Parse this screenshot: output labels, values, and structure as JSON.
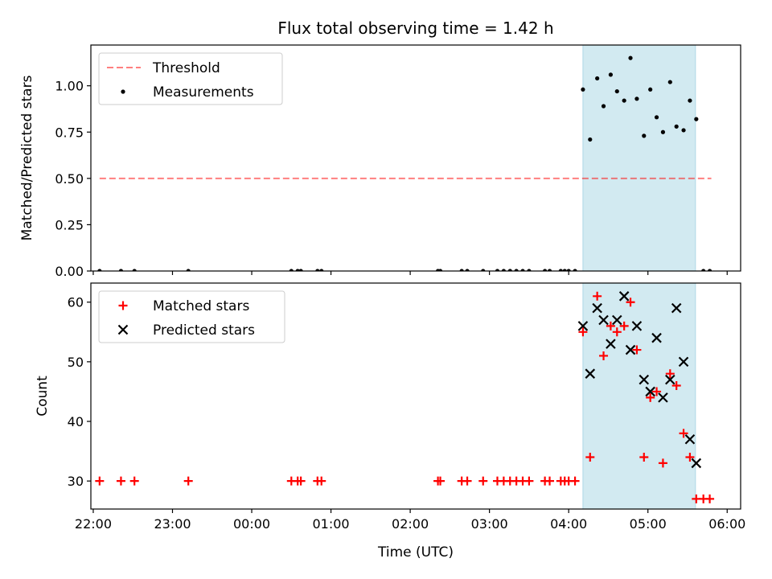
{
  "title": "Flux total observing time = 1.42 h",
  "xlabel": "Time (UTC)",
  "x_tick_labels": [
    "22:00",
    "23:00",
    "00:00",
    "01:00",
    "02:00",
    "03:00",
    "04:00",
    "05:00",
    "06:00"
  ],
  "x_tick_hours": [
    22,
    23,
    24,
    25,
    26,
    27,
    28,
    29,
    30
  ],
  "x_range_hours": [
    21.97,
    30.17
  ],
  "shaded_span_hours": [
    28.18,
    29.6
  ],
  "shade_color": "#add8e6",
  "chart_data": [
    {
      "type": "scatter",
      "ylabel": "Matched/Predicted stars",
      "ylim": [
        0,
        1.22
      ],
      "y_ticks": [
        0,
        0.25,
        0.5,
        0.75,
        1.0
      ],
      "y_tick_labels": [
        "0.00",
        "0.25",
        "0.50",
        "0.75",
        "1.00"
      ],
      "legend_position": "upper-left",
      "threshold": {
        "name": "Threshold",
        "y": 0.5,
        "x_range": [
          22.08,
          29.8
        ],
        "color": "#ff0000",
        "alpha": 0.5,
        "style": "dashed"
      },
      "series": [
        {
          "name": "Measurements",
          "color": "#000000",
          "marker": "dot",
          "x": [
            22.08,
            22.35,
            22.52,
            23.2,
            24.5,
            24.58,
            24.62,
            24.83,
            24.88,
            26.35,
            26.38,
            26.65,
            26.72,
            26.92,
            27.1,
            27.18,
            27.26,
            27.34,
            27.42,
            27.5,
            27.7,
            27.76,
            27.9,
            27.95,
            28.0,
            28.08,
            28.18,
            28.27,
            28.36,
            28.44,
            28.53,
            28.61,
            28.7,
            28.78,
            28.86,
            28.95,
            29.03,
            29.11,
            29.19,
            29.28,
            29.36,
            29.45,
            29.53,
            29.61,
            29.7,
            29.78
          ],
          "y": [
            0,
            0,
            0,
            0,
            0,
            0,
            0,
            0,
            0,
            0,
            0,
            0,
            0,
            0,
            0,
            0,
            0,
            0,
            0,
            0,
            0,
            0,
            0,
            0,
            0,
            0,
            0.98,
            0.71,
            1.04,
            0.89,
            1.06,
            0.97,
            0.92,
            1.15,
            0.93,
            0.73,
            0.98,
            0.83,
            0.75,
            1.02,
            0.78,
            0.76,
            0.92,
            0.82,
            0,
            0
          ]
        }
      ]
    },
    {
      "type": "scatter",
      "ylabel": "Count",
      "ylim": [
        25.3,
        63.2
      ],
      "y_ticks": [
        30,
        40,
        50,
        60
      ],
      "y_tick_labels": [
        "30",
        "40",
        "50",
        "60"
      ],
      "legend_position": "upper-left",
      "series": [
        {
          "name": "Matched stars",
          "color": "#ff0000",
          "marker": "plus",
          "x": [
            22.08,
            22.35,
            22.52,
            23.2,
            24.5,
            24.58,
            24.62,
            24.83,
            24.88,
            26.35,
            26.38,
            26.65,
            26.72,
            26.92,
            27.1,
            27.18,
            27.26,
            27.34,
            27.42,
            27.5,
            27.7,
            27.76,
            27.9,
            27.95,
            28.0,
            28.08,
            28.18,
            28.27,
            28.36,
            28.44,
            28.53,
            28.61,
            28.7,
            28.78,
            28.86,
            28.95,
            29.03,
            29.11,
            29.19,
            29.28,
            29.36,
            29.45,
            29.53,
            29.61,
            29.7,
            29.78
          ],
          "y": [
            30,
            30,
            30,
            30,
            30,
            30,
            30,
            30,
            30,
            30,
            30,
            30,
            30,
            30,
            30,
            30,
            30,
            30,
            30,
            30,
            30,
            30,
            30,
            30,
            30,
            30,
            55,
            34,
            61,
            51,
            56,
            55,
            56,
            60,
            52,
            34,
            44,
            45,
            33,
            48,
            46,
            38,
            34,
            27,
            27,
            27
          ]
        },
        {
          "name": "Predicted stars",
          "color": "#000000",
          "marker": "x",
          "x": [
            28.18,
            28.27,
            28.36,
            28.44,
            28.53,
            28.61,
            28.7,
            28.78,
            28.86,
            28.95,
            29.03,
            29.11,
            29.19,
            29.28,
            29.36,
            29.45,
            29.53,
            29.61
          ],
          "y": [
            56,
            48,
            59,
            57,
            53,
            57,
            61,
            52,
            56,
            47,
            45,
            54,
            44,
            47,
            59,
            50,
            37,
            33
          ]
        }
      ]
    }
  ]
}
